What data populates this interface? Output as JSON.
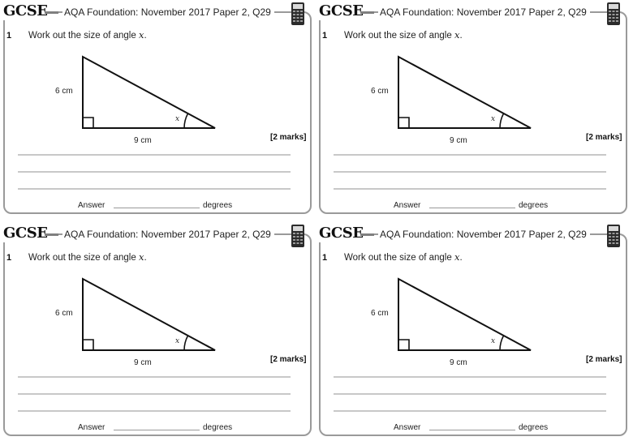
{
  "cards": [
    {
      "gcse_label": "GCSE",
      "header_title": "AQA Foundation: November 2017 Paper 2, Q29",
      "calculator_icon": "calculator-icon",
      "question_number": "1",
      "question_text": "Work out the size of angle",
      "question_variable": "x",
      "question_end": ".",
      "side_vertical": "6 cm",
      "side_horizontal": "9 cm",
      "angle_label": "x",
      "marks": "[2 marks]",
      "answer_label": "Answer",
      "answer_unit": "degrees"
    },
    {
      "gcse_label": "GCSE",
      "header_title": "AQA Foundation: November 2017 Paper 2, Q29",
      "calculator_icon": "calculator-icon",
      "question_number": "1",
      "question_text": "Work out the size of angle",
      "question_variable": "x",
      "question_end": ".",
      "side_vertical": "6 cm",
      "side_horizontal": "9 cm",
      "angle_label": "x",
      "marks": "[2 marks]",
      "answer_label": "Answer",
      "answer_unit": "degrees"
    },
    {
      "gcse_label": "GCSE",
      "header_title": "AQA Foundation: November 2017 Paper 2, Q29",
      "calculator_icon": "calculator-icon",
      "question_number": "1",
      "question_text": "Work out the size of angle",
      "question_variable": "x",
      "question_end": ".",
      "side_vertical": "6 cm",
      "side_horizontal": "9 cm",
      "angle_label": "x",
      "marks": "[2 marks]",
      "answer_label": "Answer",
      "answer_unit": "degrees"
    },
    {
      "gcse_label": "GCSE",
      "header_title": "AQA Foundation: November 2017 Paper 2, Q29",
      "calculator_icon": "calculator-icon",
      "question_number": "1",
      "question_text": "Work out the size of angle",
      "question_variable": "x",
      "question_end": ".",
      "side_vertical": "6 cm",
      "side_horizontal": "9 cm",
      "angle_label": "x",
      "marks": "[2 marks]",
      "answer_label": "Answer",
      "answer_unit": "degrees"
    }
  ],
  "colors": {
    "frame": "#9a9a9a",
    "writing_line": "#c8c8c8",
    "ink": "#111111"
  }
}
